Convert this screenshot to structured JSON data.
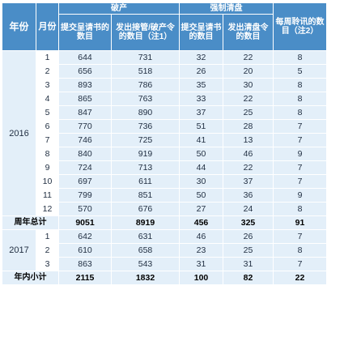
{
  "headers": {
    "year": "年份",
    "month": "月份",
    "bankruptcy_group": "破产",
    "winding_group": "强制清盘",
    "hearings": "每周聆讯的数目（注2）",
    "bk_petitions": "提交呈请书的数目",
    "bk_orders": "发出接管/破产令的数目（注1）",
    "wu_petitions": "提交呈请书的数目",
    "wu_orders": "发出清盘令的数目"
  },
  "year_2016": "2016",
  "year_2017": "2017",
  "rows_2016": [
    {
      "month": "1",
      "bk_petitions": "644",
      "bk_orders": "731",
      "wu_petitions": "32",
      "wu_orders": "22",
      "hearings": "8"
    },
    {
      "month": "2",
      "bk_petitions": "656",
      "bk_orders": "518",
      "wu_petitions": "26",
      "wu_orders": "20",
      "hearings": "5"
    },
    {
      "month": "3",
      "bk_petitions": "893",
      "bk_orders": "786",
      "wu_petitions": "35",
      "wu_orders": "30",
      "hearings": "8"
    },
    {
      "month": "4",
      "bk_petitions": "865",
      "bk_orders": "763",
      "wu_petitions": "33",
      "wu_orders": "22",
      "hearings": "8"
    },
    {
      "month": "5",
      "bk_petitions": "847",
      "bk_orders": "890",
      "wu_petitions": "37",
      "wu_orders": "25",
      "hearings": "8"
    },
    {
      "month": "6",
      "bk_petitions": "770",
      "bk_orders": "736",
      "wu_petitions": "51",
      "wu_orders": "28",
      "hearings": "7"
    },
    {
      "month": "7",
      "bk_petitions": "746",
      "bk_orders": "725",
      "wu_petitions": "41",
      "wu_orders": "13",
      "hearings": "7"
    },
    {
      "month": "8",
      "bk_petitions": "840",
      "bk_orders": "919",
      "wu_petitions": "50",
      "wu_orders": "46",
      "hearings": "9"
    },
    {
      "month": "9",
      "bk_petitions": "724",
      "bk_orders": "713",
      "wu_petitions": "44",
      "wu_orders": "22",
      "hearings": "7"
    },
    {
      "month": "10",
      "bk_petitions": "697",
      "bk_orders": "611",
      "wu_petitions": "30",
      "wu_orders": "37",
      "hearings": "7"
    },
    {
      "month": "11",
      "bk_petitions": "799",
      "bk_orders": "851",
      "wu_petitions": "50",
      "wu_orders": "36",
      "hearings": "9"
    },
    {
      "month": "12",
      "bk_petitions": "570",
      "bk_orders": "676",
      "wu_petitions": "27",
      "wu_orders": "24",
      "hearings": "8"
    }
  ],
  "total_2016": {
    "label": "周年总计",
    "bk_petitions": "9051",
    "bk_orders": "8919",
    "wu_petitions": "456",
    "wu_orders": "325",
    "hearings": "91"
  },
  "rows_2017": [
    {
      "month": "1",
      "bk_petitions": "642",
      "bk_orders": "631",
      "wu_petitions": "46",
      "wu_orders": "26",
      "hearings": "7"
    },
    {
      "month": "2",
      "bk_petitions": "610",
      "bk_orders": "658",
      "wu_petitions": "23",
      "wu_orders": "25",
      "hearings": "8"
    },
    {
      "month": "3",
      "bk_petitions": "863",
      "bk_orders": "543",
      "wu_petitions": "31",
      "wu_orders": "31",
      "hearings": "7"
    }
  ],
  "total_2017": {
    "label": "年内小计",
    "bk_petitions": "2115",
    "bk_orders": "1832",
    "wu_petitions": "100",
    "wu_orders": "82",
    "hearings": "22"
  },
  "colors": {
    "header": "#4a8dc7",
    "cell": "#e3eff9",
    "month_cell": "#ffffff",
    "border": "#ffffff"
  }
}
